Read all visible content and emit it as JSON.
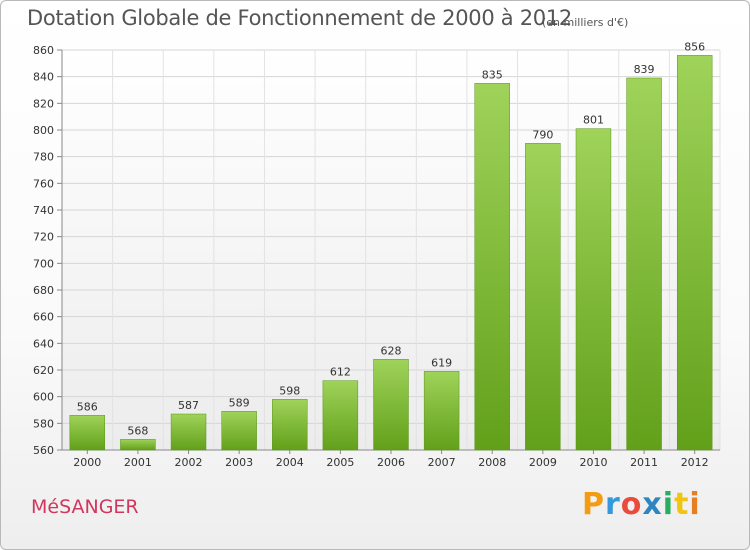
{
  "header": {
    "title": "Dotation Globale de Fonctionnement de 2000 à 2012",
    "subtitle": "(en milliers d'€)"
  },
  "footer": {
    "commune": "MéSANGER",
    "logo": [
      "P",
      "r",
      "o",
      "x",
      "i",
      "t",
      "i"
    ],
    "logo_colors": [
      "#f39c12",
      "#3498db",
      "#e74c3c",
      "#2e86c1",
      "#27ae60",
      "#f1c40f",
      "#e67e22"
    ]
  },
  "chart_data": {
    "type": "bar",
    "categories": [
      "2000",
      "2001",
      "2002",
      "2003",
      "2004",
      "2005",
      "2006",
      "2007",
      "2008",
      "2009",
      "2010",
      "2011",
      "2012"
    ],
    "values": [
      586,
      568,
      587,
      589,
      598,
      612,
      628,
      619,
      835,
      790,
      801,
      839,
      856
    ],
    "data_labels": [
      "586",
      "568",
      "587",
      "589",
      "598",
      "612",
      "628",
      "619",
      "835",
      "790",
      "801",
      "839",
      "856"
    ],
    "title": "Dotation Globale de Fonctionnement de 2000 à 2012",
    "xlabel": "",
    "ylabel": "",
    "ylim": [
      560,
      860
    ],
    "yticks": [
      560,
      580,
      600,
      620,
      640,
      660,
      680,
      700,
      720,
      740,
      760,
      780,
      800,
      820,
      840,
      860
    ],
    "grid": true,
    "bar_color": "#7fbf2f"
  }
}
